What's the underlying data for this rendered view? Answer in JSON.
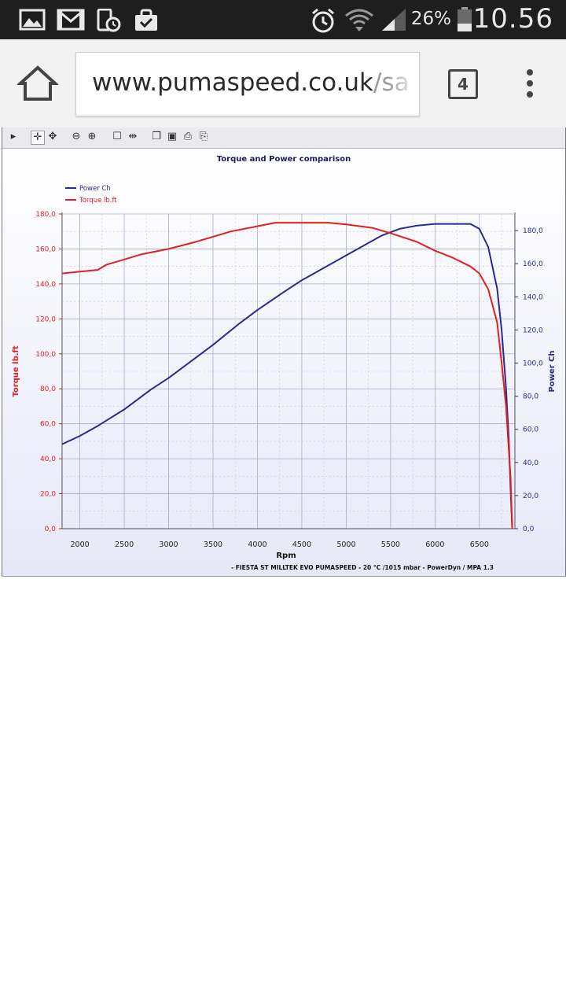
{
  "status_bar": {
    "battery": "26%",
    "time": "10.56",
    "left_icons": [
      "image-icon",
      "gmail-icon",
      "phone-clock-icon",
      "shopping-bag-icon"
    ],
    "right_icons": [
      "alarm-icon",
      "wifi-icon",
      "signal-icon",
      "battery-icon"
    ]
  },
  "browser": {
    "url_host": "www.pumaspeed.co.uk",
    "url_path": "/sa",
    "tab_count": "4"
  },
  "chart_toolbar": {
    "icons": [
      "play-icon",
      "pan-icon",
      "move-icon",
      "zoom-out-icon",
      "zoom-in-icon",
      "select-box-icon",
      "cursor-icon",
      "copy-icon",
      "save-icon",
      "print-icon",
      "print-preview-icon"
    ]
  },
  "chart_data": {
    "type": "line",
    "title": "Torque and Power comparison",
    "xlabel": "Rpm",
    "ylabel_left": "Torque lb.ft",
    "ylabel_right": "Power Ch",
    "footer": "- FIESTA ST MILLTEK EVO PUMASPEED - 20 °C /1015 mbar - PowerDyn / MPA 1.3",
    "xlim": [
      1800,
      6900
    ],
    "ylim_left": [
      0,
      180
    ],
    "ylim_right": [
      0,
      190
    ],
    "x_ticks": [
      "2000",
      "2500",
      "3000",
      "3500",
      "4000",
      "4500",
      "5000",
      "5500",
      "6000",
      "6500"
    ],
    "y_ticks_left": [
      "0,0",
      "20,0",
      "40,0",
      "60,0",
      "80,0",
      "100,0",
      "120,0",
      "140,0",
      "160,0",
      "180,0"
    ],
    "y_ticks_right": [
      "0,0",
      "20,0",
      "40,0",
      "60,0",
      "80,0",
      "100,0",
      "120,0",
      "140,0",
      "160,0",
      "180,0"
    ],
    "legend_position": "top-left",
    "grid": true,
    "series": [
      {
        "name": "Power Ch",
        "color": "#2a2a8c",
        "axis": "right",
        "points": [
          [
            1800,
            51
          ],
          [
            2000,
            56
          ],
          [
            2200,
            62
          ],
          [
            2500,
            72
          ],
          [
            2800,
            84
          ],
          [
            3000,
            91
          ],
          [
            3300,
            103
          ],
          [
            3500,
            111
          ],
          [
            3800,
            124
          ],
          [
            4000,
            132
          ],
          [
            4300,
            143
          ],
          [
            4500,
            150
          ],
          [
            4800,
            159
          ],
          [
            5000,
            165
          ],
          [
            5200,
            171
          ],
          [
            5400,
            177
          ],
          [
            5600,
            181
          ],
          [
            5800,
            183
          ],
          [
            6000,
            184
          ],
          [
            6200,
            184
          ],
          [
            6400,
            184
          ],
          [
            6500,
            181
          ],
          [
            6600,
            170
          ],
          [
            6700,
            145
          ],
          [
            6750,
            120
          ],
          [
            6800,
            85
          ],
          [
            6830,
            55
          ],
          [
            6850,
            25
          ],
          [
            6870,
            0
          ]
        ]
      },
      {
        "name": "Torque lb.ft",
        "color": "#e02020",
        "axis": "left",
        "points": [
          [
            1800,
            146
          ],
          [
            2000,
            147
          ],
          [
            2200,
            148
          ],
          [
            2300,
            151
          ],
          [
            2500,
            154
          ],
          [
            2700,
            157
          ],
          [
            3000,
            160
          ],
          [
            3300,
            164
          ],
          [
            3500,
            167
          ],
          [
            3700,
            170
          ],
          [
            4000,
            173
          ],
          [
            4200,
            175
          ],
          [
            4500,
            175
          ],
          [
            4800,
            175
          ],
          [
            5000,
            174
          ],
          [
            5300,
            172
          ],
          [
            5500,
            169
          ],
          [
            5800,
            164
          ],
          [
            6000,
            159
          ],
          [
            6200,
            155
          ],
          [
            6400,
            150
          ],
          [
            6500,
            146
          ],
          [
            6600,
            137
          ],
          [
            6700,
            118
          ],
          [
            6750,
            95
          ],
          [
            6800,
            70
          ],
          [
            6850,
            30
          ],
          [
            6870,
            0
          ]
        ]
      }
    ]
  }
}
